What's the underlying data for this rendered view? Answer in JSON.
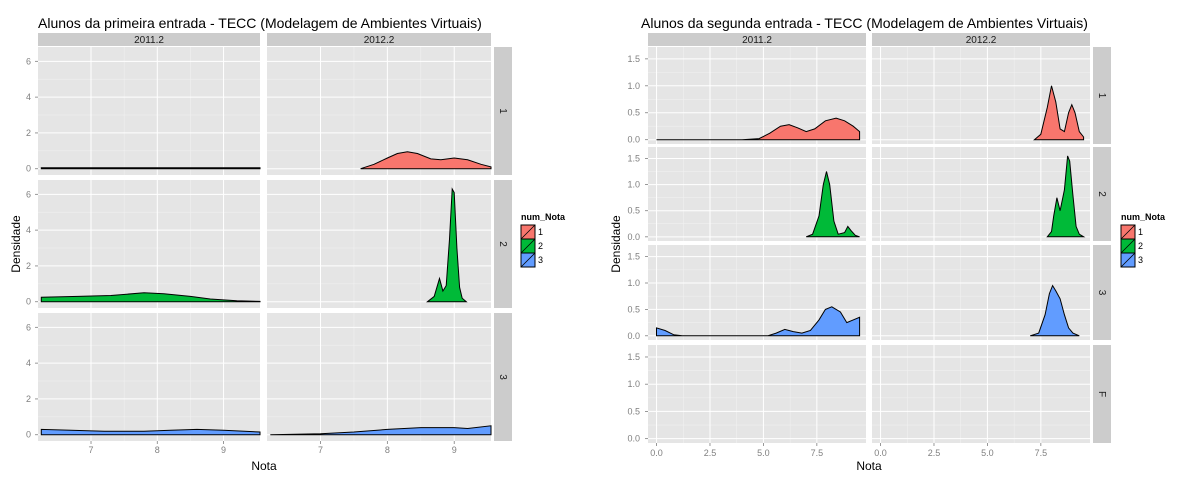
{
  "legend": {
    "title": "num_Nota",
    "items": [
      {
        "label": "1",
        "color": "#F8766D"
      },
      {
        "label": "2",
        "color": "#00BA38"
      },
      {
        "label": "3",
        "color": "#619CFF"
      }
    ]
  },
  "chart_data": [
    {
      "type": "area",
      "title": "Alunos da primeira entrada -  TECC (Modelagem de Ambientes Virtuais)",
      "xlabel": "Nota",
      "ylabel": "Densidade",
      "xlim": [
        6.2,
        9.55
      ],
      "ylim": [
        -0.35,
        6.8
      ],
      "xticks": [
        7,
        8,
        9
      ],
      "yticks": [
        0,
        2,
        4,
        6
      ],
      "col_strips": [
        "2011.2",
        "2012.2"
      ],
      "row_strips": [
        "1",
        "2",
        "3"
      ],
      "grid": true,
      "legend_position": "right",
      "panels": [
        {
          "row": "1",
          "col": "2011.2",
          "series": "1",
          "points": [
            [
              6.25,
              0.05
            ],
            [
              7,
              0.05
            ],
            [
              8,
              0.05
            ],
            [
              9,
              0.05
            ],
            [
              9.55,
              0.05
            ]
          ]
        },
        {
          "row": "1",
          "col": "2012.2",
          "series": "1",
          "points": [
            [
              7.6,
              0
            ],
            [
              7.8,
              0.25
            ],
            [
              8.0,
              0.6
            ],
            [
              8.15,
              0.85
            ],
            [
              8.3,
              0.95
            ],
            [
              8.45,
              0.85
            ],
            [
              8.65,
              0.55
            ],
            [
              8.8,
              0.5
            ],
            [
              9.0,
              0.6
            ],
            [
              9.2,
              0.5
            ],
            [
              9.4,
              0.25
            ],
            [
              9.55,
              0.1
            ]
          ]
        },
        {
          "row": "2",
          "col": "2011.2",
          "series": "2",
          "points": [
            [
              6.25,
              0.25
            ],
            [
              6.8,
              0.3
            ],
            [
              7.3,
              0.35
            ],
            [
              7.8,
              0.5
            ],
            [
              8.1,
              0.45
            ],
            [
              8.5,
              0.3
            ],
            [
              8.8,
              0.15
            ],
            [
              9.2,
              0.05
            ],
            [
              9.55,
              0.02
            ]
          ]
        },
        {
          "row": "2",
          "col": "2012.2",
          "series": "2",
          "points": [
            [
              8.6,
              0
            ],
            [
              8.7,
              0.3
            ],
            [
              8.78,
              1.3
            ],
            [
              8.83,
              0.6
            ],
            [
              8.88,
              0.9
            ],
            [
              8.93,
              3.5
            ],
            [
              8.97,
              6.3
            ],
            [
              9.0,
              6.1
            ],
            [
              9.04,
              3.0
            ],
            [
              9.08,
              0.8
            ],
            [
              9.12,
              0.2
            ],
            [
              9.18,
              0
            ]
          ]
        },
        {
          "row": "3",
          "col": "2011.2",
          "series": "3",
          "points": [
            [
              6.25,
              0.3
            ],
            [
              6.7,
              0.25
            ],
            [
              7.2,
              0.2
            ],
            [
              7.8,
              0.2
            ],
            [
              8.2,
              0.25
            ],
            [
              8.6,
              0.3
            ],
            [
              9.0,
              0.25
            ],
            [
              9.55,
              0.15
            ]
          ]
        },
        {
          "row": "3",
          "col": "2012.2",
          "series": "3",
          "points": [
            [
              6.25,
              0
            ],
            [
              7.0,
              0.05
            ],
            [
              7.5,
              0.15
            ],
            [
              8.0,
              0.3
            ],
            [
              8.5,
              0.4
            ],
            [
              9.0,
              0.4
            ],
            [
              9.2,
              0.35
            ],
            [
              9.55,
              0.5
            ]
          ]
        }
      ]
    },
    {
      "type": "area",
      "title": "Alunos da segunda entrada -  TECC (Modelagem de Ambientes Virtuais)",
      "xlabel": "Nota",
      "ylabel": "Densidade",
      "xlim": [
        -0.4,
        9.8
      ],
      "ylim": [
        -0.08,
        1.72
      ],
      "xticks": [
        0.0,
        2.5,
        5.0,
        7.5
      ],
      "xtick_labels": [
        "0.0",
        "2.5",
        "5.0",
        "7.5"
      ],
      "yticks": [
        0,
        0.5,
        1,
        1.5
      ],
      "ytick_labels": [
        "0.0",
        "0.5",
        "1.0",
        "1.5"
      ],
      "col_strips": [
        "2011.2",
        "2012.2"
      ],
      "row_strips": [
        "1",
        "2",
        "3",
        "F"
      ],
      "grid": true,
      "legend_position": "right",
      "panels": [
        {
          "row": "1",
          "col": "2011.2",
          "series": "1",
          "points": [
            [
              0,
              0
            ],
            [
              2,
              0
            ],
            [
              4,
              0
            ],
            [
              4.8,
              0.02
            ],
            [
              5.3,
              0.12
            ],
            [
              5.8,
              0.25
            ],
            [
              6.2,
              0.28
            ],
            [
              6.6,
              0.22
            ],
            [
              7.0,
              0.15
            ],
            [
              7.4,
              0.2
            ],
            [
              7.9,
              0.35
            ],
            [
              8.4,
              0.4
            ],
            [
              8.8,
              0.35
            ],
            [
              9.2,
              0.25
            ],
            [
              9.5,
              0.15
            ]
          ]
        },
        {
          "row": "1",
          "col": "2012.2",
          "series": "1",
          "points": [
            [
              7.2,
              0
            ],
            [
              7.5,
              0.1
            ],
            [
              7.8,
              0.6
            ],
            [
              8.0,
              1.0
            ],
            [
              8.2,
              0.7
            ],
            [
              8.4,
              0.2
            ],
            [
              8.6,
              0.15
            ],
            [
              8.8,
              0.5
            ],
            [
              8.95,
              0.65
            ],
            [
              9.1,
              0.5
            ],
            [
              9.3,
              0.15
            ],
            [
              9.5,
              0.05
            ]
          ]
        },
        {
          "row": "2",
          "col": "2011.2",
          "series": "2",
          "points": [
            [
              7.0,
              0
            ],
            [
              7.3,
              0.05
            ],
            [
              7.6,
              0.4
            ],
            [
              7.8,
              1.0
            ],
            [
              7.95,
              1.25
            ],
            [
              8.1,
              1.0
            ],
            [
              8.3,
              0.3
            ],
            [
              8.5,
              0.05
            ],
            [
              8.8,
              0.08
            ],
            [
              8.95,
              0.2
            ],
            [
              9.1,
              0.12
            ],
            [
              9.3,
              0.03
            ],
            [
              9.5,
              0
            ]
          ]
        },
        {
          "row": "2",
          "col": "2012.2",
          "series": "2",
          "points": [
            [
              7.8,
              0
            ],
            [
              8.0,
              0.1
            ],
            [
              8.1,
              0.4
            ],
            [
              8.25,
              0.75
            ],
            [
              8.4,
              0.5
            ],
            [
              8.6,
              0.9
            ],
            [
              8.75,
              1.55
            ],
            [
              8.85,
              1.45
            ],
            [
              9.0,
              0.8
            ],
            [
              9.15,
              0.2
            ],
            [
              9.3,
              0.05
            ],
            [
              9.5,
              0
            ]
          ]
        },
        {
          "row": "3",
          "col": "2011.2",
          "series": "3",
          "points": [
            [
              0,
              0.15
            ],
            [
              0.4,
              0.1
            ],
            [
              0.8,
              0.02
            ],
            [
              1.2,
              0
            ],
            [
              4,
              0
            ],
            [
              5.2,
              0
            ],
            [
              5.6,
              0.05
            ],
            [
              6.0,
              0.12
            ],
            [
              6.4,
              0.08
            ],
            [
              6.8,
              0.05
            ],
            [
              7.2,
              0.1
            ],
            [
              7.6,
              0.3
            ],
            [
              7.9,
              0.5
            ],
            [
              8.2,
              0.55
            ],
            [
              8.6,
              0.45
            ],
            [
              8.9,
              0.25
            ],
            [
              9.2,
              0.3
            ],
            [
              9.5,
              0.35
            ]
          ]
        },
        {
          "row": "3",
          "col": "2012.2",
          "series": "3",
          "points": [
            [
              7.0,
              0
            ],
            [
              7.4,
              0.05
            ],
            [
              7.7,
              0.4
            ],
            [
              7.9,
              0.8
            ],
            [
              8.05,
              0.95
            ],
            [
              8.2,
              0.85
            ],
            [
              8.4,
              0.7
            ],
            [
              8.6,
              0.4
            ],
            [
              8.8,
              0.15
            ],
            [
              9.0,
              0.05
            ],
            [
              9.3,
              0
            ]
          ]
        },
        {
          "row": "F",
          "col": "2011.2",
          "series": null,
          "points": []
        },
        {
          "row": "F",
          "col": "2012.2",
          "series": null,
          "points": []
        }
      ]
    }
  ]
}
